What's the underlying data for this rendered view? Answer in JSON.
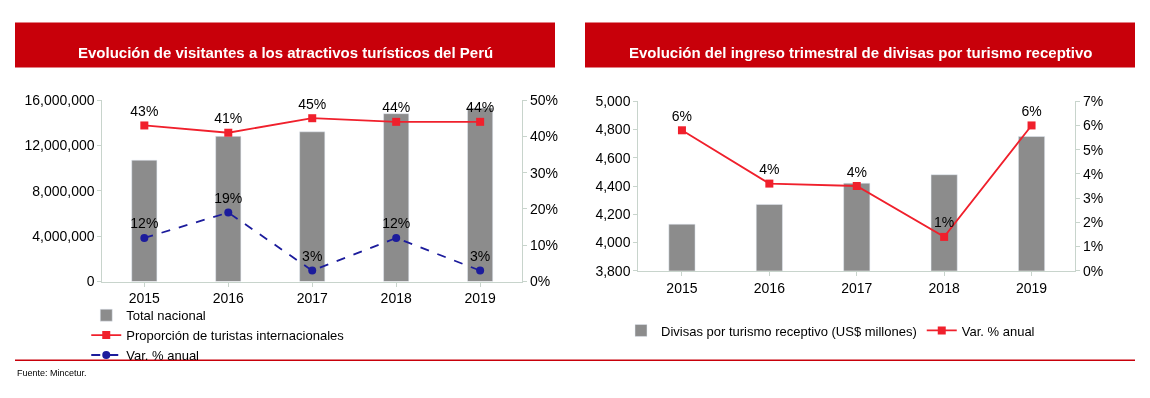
{
  "chart_data": [
    {
      "type": "bar",
      "title": "Evolución de visitantes a los atractivos turísticos del Perú",
      "categories": [
        "2015",
        "2016",
        "2017",
        "2018",
        "2019"
      ],
      "series": [
        {
          "name": "Total nacional",
          "color": "#8c8c8c",
          "values": [
            10700000,
            12800000,
            13200000,
            14800000,
            15300000
          ]
        },
        {
          "name": "Proporción de turistas internacionales",
          "type": "line",
          "axis": "y2",
          "color": "#f0202c",
          "marker": "square",
          "line_style": "solid",
          "values": [
            43,
            41,
            45,
            44,
            44
          ],
          "value_labels": [
            "43%",
            "41%",
            "45%",
            "44%",
            "44%"
          ]
        },
        {
          "name": "Var. % anual",
          "type": "line",
          "axis": "y2",
          "color": "#1c1c9c",
          "marker": "circle",
          "line_style": "dashed",
          "values": [
            12,
            19,
            3,
            12,
            3
          ],
          "value_labels": [
            "12%",
            "19%",
            "3%",
            "12%",
            "3%"
          ]
        }
      ],
      "ylim": [
        0,
        16000000
      ],
      "yticks": [
        {
          "value": 0,
          "label": "0"
        },
        {
          "value": 4000000,
          "label": "4,000,000"
        },
        {
          "value": 8000000,
          "label": "8,000,000"
        },
        {
          "value": 12000000,
          "label": "12,000,000"
        },
        {
          "value": 16000000,
          "label": "16,000,000"
        }
      ],
      "y2lim": [
        0,
        50
      ],
      "y2ticks": [
        {
          "value": 0,
          "label": "0%"
        },
        {
          "value": 10,
          "label": "10%"
        },
        {
          "value": 20,
          "label": "20%"
        },
        {
          "value": 30,
          "label": "30%"
        },
        {
          "value": 40,
          "label": "40%"
        },
        {
          "value": 50,
          "label": "50%"
        }
      ],
      "legend": "bottom",
      "annotations": [
        "Fuente: Mincetur."
      ]
    },
    {
      "type": "bar",
      "title": "Evolución del ingreso trimestral de divisas por turismo receptivo",
      "categories": [
        "2015",
        "2016",
        "2017",
        "2018",
        "2019"
      ],
      "series": [
        {
          "name": "Divisas por turismo receptivo (US$ millones)",
          "color": "#8c8c8c",
          "values": [
            4130,
            4270,
            4420,
            4480,
            4750
          ]
        },
        {
          "name": "Var. % anual",
          "type": "line",
          "axis": "y2",
          "color": "#f0202c",
          "marker": "square",
          "line_style": "solid",
          "values": [
            5.8,
            3.6,
            3.5,
            1.4,
            6.0
          ],
          "value_labels": [
            "6%",
            "4%",
            "4%",
            "1%",
            "6%"
          ]
        }
      ],
      "ylim": [
        3800,
        5000
      ],
      "yticks": [
        {
          "value": 3800,
          "label": "3,800"
        },
        {
          "value": 4000,
          "label": "4,000"
        },
        {
          "value": 4200,
          "label": "4,200"
        },
        {
          "value": 4400,
          "label": "4,400"
        },
        {
          "value": 4600,
          "label": "4,600"
        },
        {
          "value": 4800,
          "label": "4,800"
        },
        {
          "value": 5000,
          "label": "5,000"
        }
      ],
      "y2lim": [
        0,
        7
      ],
      "y2ticks": [
        {
          "value": 0,
          "label": "0%"
        },
        {
          "value": 1,
          "label": "1%"
        },
        {
          "value": 2,
          "label": "2%"
        },
        {
          "value": 3,
          "label": "3%"
        },
        {
          "value": 4,
          "label": "4%"
        },
        {
          "value": 5,
          "label": "5%"
        },
        {
          "value": 6,
          "label": "6%"
        },
        {
          "value": 7,
          "label": "7%"
        }
      ],
      "legend": "bottom"
    }
  ]
}
